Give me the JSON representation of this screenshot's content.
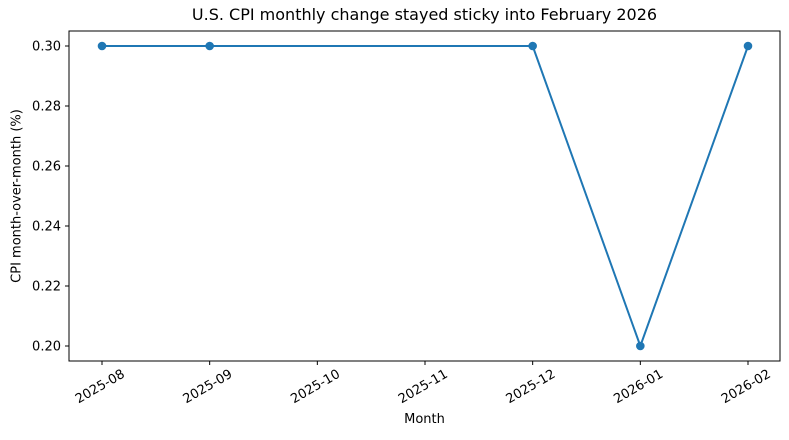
{
  "chart_data": {
    "type": "line",
    "title": "U.S. CPI monthly change stayed sticky into February 2026",
    "xlabel": "Month",
    "ylabel": "CPI month-over-month (%)",
    "x_ticks": [
      "2025-08",
      "2025-09",
      "2025-10",
      "2025-11",
      "2025-12",
      "2026-01",
      "2026-02"
    ],
    "y_ticks": [
      "0.20",
      "0.22",
      "0.24",
      "0.26",
      "0.28",
      "0.30"
    ],
    "ylim": [
      0.195,
      0.305
    ],
    "grid": false,
    "x_tick_rotation_deg": 30,
    "line_color": "#1f77b4",
    "series": [
      {
        "color": "#1f77b4",
        "marker": "circle",
        "points": [
          {
            "x": "2025-08",
            "y": 0.3
          },
          {
            "x": "2025-09",
            "y": 0.3
          },
          {
            "x": "2025-12",
            "y": 0.3
          },
          {
            "x": "2026-01",
            "y": 0.2
          },
          {
            "x": "2026-02",
            "y": 0.3
          }
        ]
      }
    ]
  }
}
